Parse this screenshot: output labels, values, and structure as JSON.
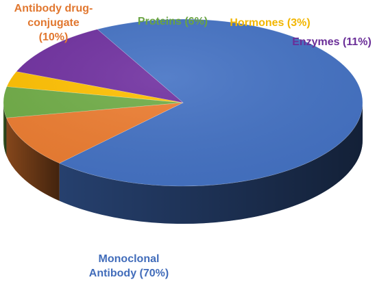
{
  "chart_data": {
    "type": "pie",
    "title": "",
    "style": "3d",
    "slices": [
      {
        "label_lines": [
          "Monoclonal",
          "Antibody (70%)"
        ],
        "value": 70,
        "color": "#4472C4"
      },
      {
        "label_lines": [
          "Antibody drug-",
          "conjugate",
          "(10%)"
        ],
        "value": 10,
        "color": "#ED7D31"
      },
      {
        "label_lines": [
          "Proteins (6%)"
        ],
        "value": 6,
        "color": "#70AD47"
      },
      {
        "label_lines": [
          "Hormones (3%)"
        ],
        "value": 3,
        "color": "#FFC000"
      },
      {
        "label_lines": [
          "Enzymes (11%)"
        ],
        "value": 11,
        "color": "#7030A0"
      }
    ],
    "legend": "none"
  }
}
